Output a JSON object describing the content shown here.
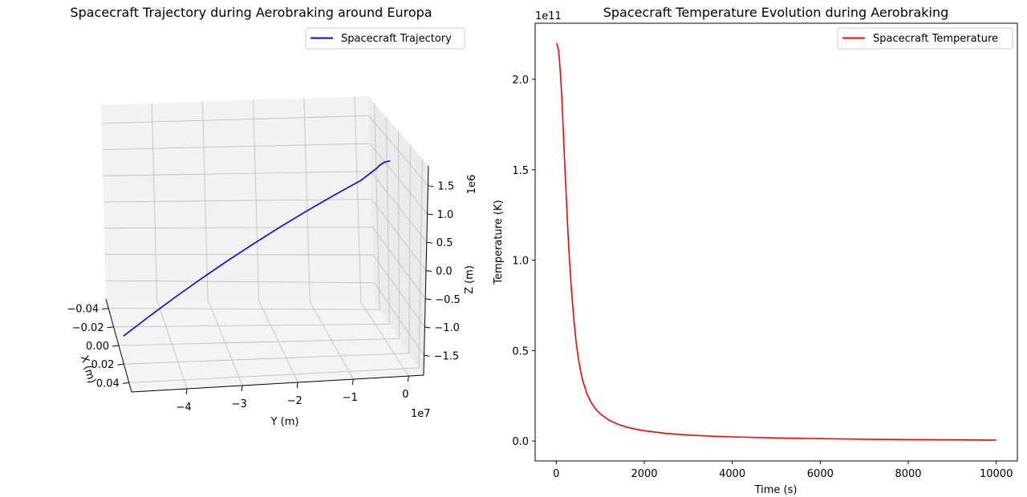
{
  "chart_data": [
    {
      "type": "line3d",
      "title": "Spacecraft Trajectory during Aerobraking around Europa",
      "xlabel": "X (m)",
      "ylabel": "Y (m)",
      "zlabel": "Z (m)",
      "x_ticks": [
        "−0.04",
        "−0.02",
        "0.00",
        "0.02",
        "0.04"
      ],
      "y_ticks": [
        "−4",
        "−3",
        "−2",
        "−1",
        "0"
      ],
      "y_offset": "1e7",
      "z_ticks": [
        "1.5",
        "1.0",
        "0.5",
        "0.0",
        "−0.5",
        "−1.0",
        "−1.5"
      ],
      "z_offset": "1e6",
      "grid": true,
      "legend": "top-right",
      "series": [
        {
          "name": "Spacecraft Trajectory",
          "color": "#0000ff",
          "x": [
            0,
            0,
            0,
            0,
            0,
            0,
            0,
            0,
            0,
            0,
            0
          ],
          "y": [
            -49000000,
            -44000000,
            -39000000,
            -34000000,
            -29000000,
            -24000000,
            -19000000,
            -14000000,
            -9000000,
            -4000000,
            -1200000
          ],
          "z": [
            -1700000,
            -1390000,
            -1080000,
            -770000,
            -460000,
            -150000,
            160000,
            470000,
            780000,
            1090000,
            1330000
          ]
        }
      ]
    },
    {
      "type": "line",
      "title": "Spacecraft Temperature Evolution during Aerobraking",
      "xlabel": "Time (s)",
      "ylabel": "Temperature (K)",
      "x_ticks": [
        "0",
        "2000",
        "4000",
        "6000",
        "8000",
        "10000"
      ],
      "y_ticks": [
        "0.0",
        "0.5",
        "1.0",
        "1.5",
        "2.0"
      ],
      "y_offset": "1e11",
      "xlim": [
        -480,
        10480
      ],
      "ylim": [
        -11000000000,
        231000000000
      ],
      "legend": "top-right",
      "series": [
        {
          "name": "Spacecraft Temperature",
          "color": "#ff0000",
          "x": [
            0,
            25,
            50,
            75,
            100,
            125,
            150,
            175,
            200,
            225,
            250,
            275,
            300,
            350,
            400,
            450,
            500,
            550,
            600,
            700,
            800,
            900,
            1000,
            1200,
            1400,
            1600,
            1800,
            2000,
            2500,
            3000,
            3500,
            4000,
            5000,
            6000,
            7000,
            8000,
            9000,
            10000
          ],
          "y": [
            220000000000,
            219000000000,
            216000000000,
            210000000000,
            201000000000,
            190000000000,
            177000000000,
            163000000000,
            149000000000,
            136000000000,
            123000000000,
            111000000000,
            100000000000,
            82000000000,
            67000000000,
            55000000000,
            46000000000,
            39000000000,
            33500000000,
            26000000000,
            21000000000,
            17500000000,
            15000000000,
            11500000000,
            9300000000,
            7700000000,
            6600000000,
            5700000000,
            4200000000,
            3300000000,
            2700000000,
            2300000000,
            1700000000,
            1300000000,
            1000000000,
            800000000,
            650000000,
            500000000
          ]
        }
      ]
    }
  ]
}
